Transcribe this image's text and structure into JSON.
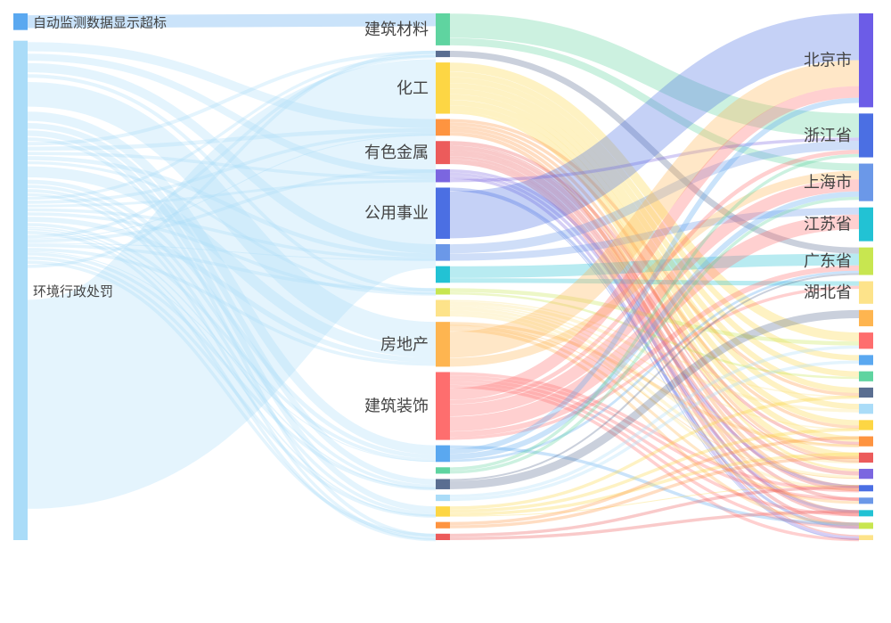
{
  "chart_data": {
    "type": "sankey",
    "columns": [
      [
        {
          "name": "自动监测数据显示超标",
          "value": 1,
          "color": "#5aa8f0"
        },
        {
          "name": "环境行政处罚",
          "value": 30,
          "color": "#aadcf8"
        }
      ],
      [
        {
          "name": "建筑材料",
          "value": 2.5,
          "color": "#5fd4a0"
        },
        {
          "name": "",
          "value": 0.5,
          "color": "#5a6e91"
        },
        {
          "name": "化工",
          "value": 4,
          "color": "#fdd644"
        },
        {
          "name": "",
          "value": 1.3,
          "color": "#fe9440"
        },
        {
          "name": "有色金属",
          "value": 1.8,
          "color": "#ec5b5b"
        },
        {
          "name": "",
          "value": 1,
          "color": "#7b66e0"
        },
        {
          "name": "公用事业",
          "value": 4,
          "color": "#4b6fe3"
        },
        {
          "name": "",
          "value": 1.3,
          "color": "#6b98e8"
        },
        {
          "name": "",
          "value": 1.3,
          "color": "#22c2d4"
        },
        {
          "name": "",
          "value": 0.5,
          "color": "#c8e650"
        },
        {
          "name": "",
          "value": 1.3,
          "color": "#fde38a"
        },
        {
          "name": "房地产",
          "value": 3.5,
          "color": "#feb550"
        },
        {
          "name": "建筑装饰",
          "value": 5.3,
          "color": "#fe6e6e"
        },
        {
          "name": "",
          "value": 1.3,
          "color": "#5aa8f0"
        },
        {
          "name": "",
          "value": 0.5,
          "color": "#5fd4a0"
        },
        {
          "name": "",
          "value": 0.8,
          "color": "#5a6e91"
        },
        {
          "name": "",
          "value": 0.5,
          "color": "#aadcf8"
        },
        {
          "name": "",
          "value": 0.8,
          "color": "#fdd644"
        },
        {
          "name": "",
          "value": 0.5,
          "color": "#fe9440"
        },
        {
          "name": "",
          "value": 0.5,
          "color": "#ec5b5b"
        }
      ],
      [
        {
          "name": "北京市",
          "value": 7.5,
          "color": "#6c5ce7"
        },
        {
          "name": "浙江省",
          "value": 3.5,
          "color": "#4b6fe3"
        },
        {
          "name": "上海市",
          "value": 3,
          "color": "#6b98e8"
        },
        {
          "name": "江苏省",
          "value": 2.7,
          "color": "#22c2d4"
        },
        {
          "name": "广东省",
          "value": 2.2,
          "color": "#c8e650"
        },
        {
          "name": "湖北省",
          "value": 1.8,
          "color": "#fde38a"
        },
        {
          "name": "",
          "value": 1.3,
          "color": "#feb550"
        },
        {
          "name": "",
          "value": 1.3,
          "color": "#fe6e6e"
        },
        {
          "name": "",
          "value": 0.8,
          "color": "#5aa8f0"
        },
        {
          "name": "",
          "value": 0.8,
          "color": "#5fd4a0"
        },
        {
          "name": "",
          "value": 0.8,
          "color": "#5a6e91"
        },
        {
          "name": "",
          "value": 0.8,
          "color": "#aadcf8"
        },
        {
          "name": "",
          "value": 0.8,
          "color": "#fdd644"
        },
        {
          "name": "",
          "value": 0.8,
          "color": "#fe9440"
        },
        {
          "name": "",
          "value": 0.8,
          "color": "#ec5b5b"
        },
        {
          "name": "",
          "value": 0.8,
          "color": "#7b66e0"
        },
        {
          "name": "",
          "value": 0.5,
          "color": "#4b6fe3"
        },
        {
          "name": "",
          "value": 0.5,
          "color": "#6b98e8"
        },
        {
          "name": "",
          "value": 0.5,
          "color": "#22c2d4"
        },
        {
          "name": "",
          "value": 0.5,
          "color": "#c8e650"
        },
        {
          "name": "",
          "value": 0.4,
          "color": "#fde38a"
        }
      ]
    ],
    "link_opacity": 0.32,
    "legend": false,
    "grid": false
  }
}
